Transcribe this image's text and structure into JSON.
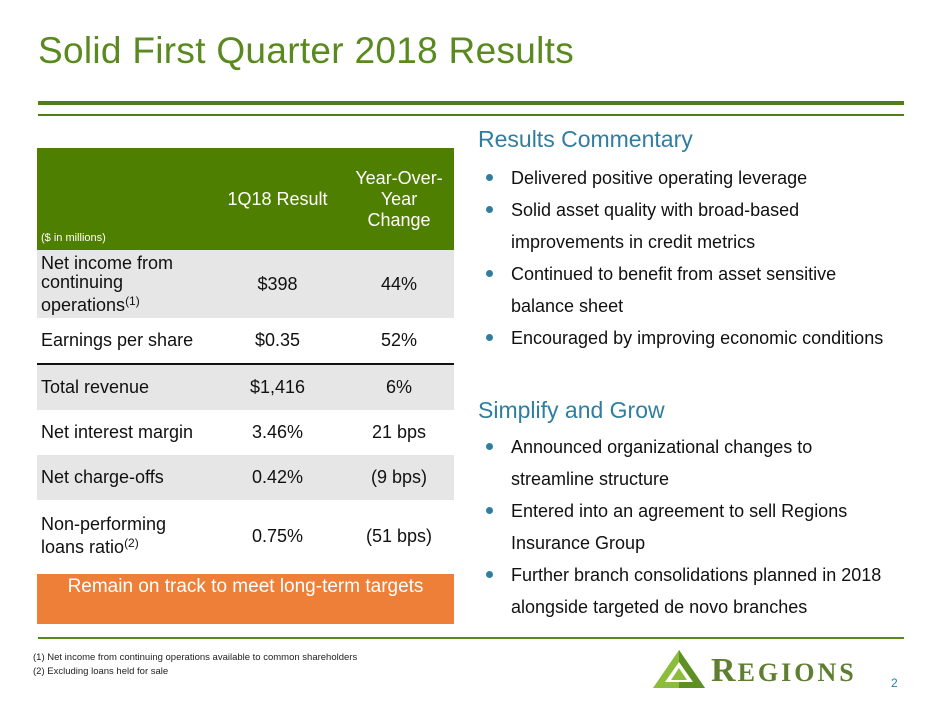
{
  "title": "Solid First Quarter 2018 Results",
  "table": {
    "units": "($ in millions)",
    "col1": "1Q18 Result",
    "col2": "Year-Over-Year Change",
    "rows": [
      {
        "label": "Net income from continuing operations",
        "footnote": "(1)",
        "result": "$398",
        "change": "44%"
      },
      {
        "label": "Earnings per share",
        "result": "$0.35",
        "change": "52%"
      },
      {
        "label": "Total revenue",
        "result": "$1,416",
        "change": "6%"
      },
      {
        "label": "Net interest margin",
        "result": "3.46%",
        "change": "21 bps"
      },
      {
        "label": "Net charge-offs",
        "result": "0.42%",
        "change": "(9 bps)"
      },
      {
        "label": "Non-performing loans ratio",
        "footnote": "(2)",
        "result": "0.75%",
        "change": "(51 bps)"
      }
    ]
  },
  "banner": "Remain on track to meet long-term targets",
  "commentary": {
    "heading": "Results Commentary",
    "items": [
      "Delivered positive operating leverage",
      "Solid asset quality with broad-based improvements in credit metrics",
      "Continued to benefit from asset sensitive balance sheet",
      "Encouraged by improving economic conditions"
    ]
  },
  "simplify": {
    "heading": "Simplify and Grow",
    "items": [
      "Announced organizational changes to streamline structure",
      "Entered into an agreement to sell Regions Insurance Group",
      "Further branch consolidations planned in 2018 alongside targeted de novo branches"
    ]
  },
  "footnotes": [
    "(1) Net income from continuing operations available to common shareholders",
    "(2) Excluding loans held for sale"
  ],
  "logo": {
    "initial": "R",
    "rest": "EGIONS"
  },
  "page_number": "2",
  "colors": {
    "green": "#4f7f00",
    "orange": "#ee7f38",
    "blue": "#2f7ea0"
  }
}
